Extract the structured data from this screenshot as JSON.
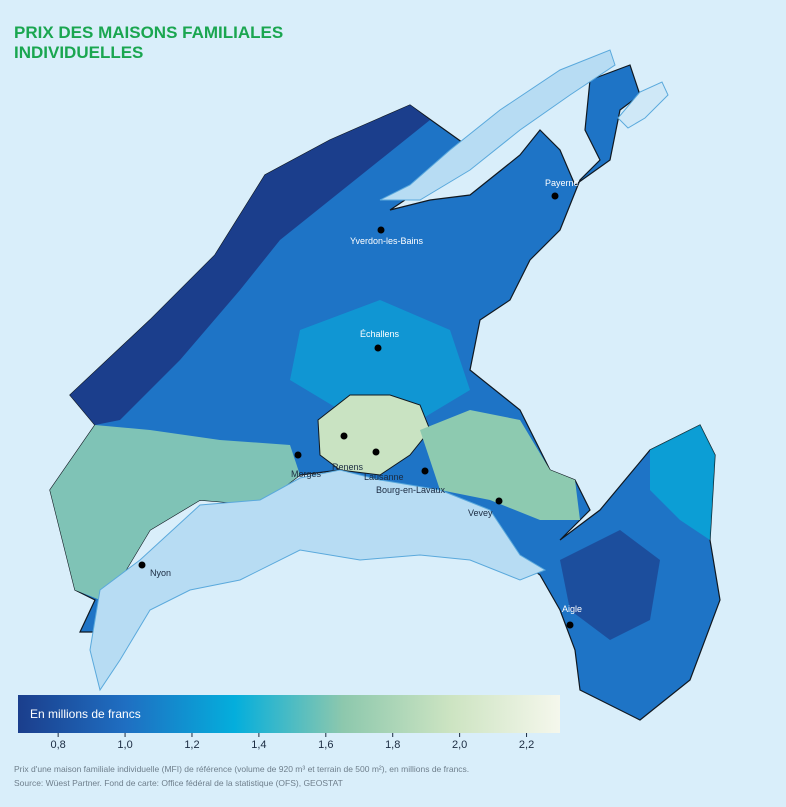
{
  "title_lines": [
    "PRIX DES MAISONS FAMILIALES",
    "INDIVIDUELLES"
  ],
  "cities": [
    "Payerne",
    "Yverdon-les-Bains",
    "Échallens",
    "Morges",
    "Renens",
    "Lausanne",
    "Bourg-en-Lavaux",
    "Vevey",
    "Nyon",
    "Aigle"
  ],
  "legend": {
    "title": "En millions de francs",
    "range": [
      0.68,
      2.3
    ],
    "colors": [
      "#1b3e8c",
      "#1f6fc2",
      "#04aedc",
      "#8dc8ad",
      "#cde4c2",
      "#f5f7ec"
    ],
    "ticks": [
      {
        "value": 0.8,
        "label": "0,8"
      },
      {
        "value": 1.0,
        "label": "1,0"
      },
      {
        "value": 1.2,
        "label": "1,2"
      },
      {
        "value": 1.4,
        "label": "1,4"
      },
      {
        "value": 1.6,
        "label": "1,6"
      },
      {
        "value": 1.8,
        "label": "1,8"
      },
      {
        "value": 2.0,
        "label": "2,0"
      },
      {
        "value": 2.2,
        "label": "2,2"
      }
    ]
  },
  "footnotes": [
    "Prix d'une maison familiale individuelle (MFI) de référence (volume de 920 m³ et terrain de 500 m²), en millions de francs.",
    "Source: Wüest Partner. Fond de carte: Office fédéral de la statistique (OFS), GEOSTAT"
  ]
}
